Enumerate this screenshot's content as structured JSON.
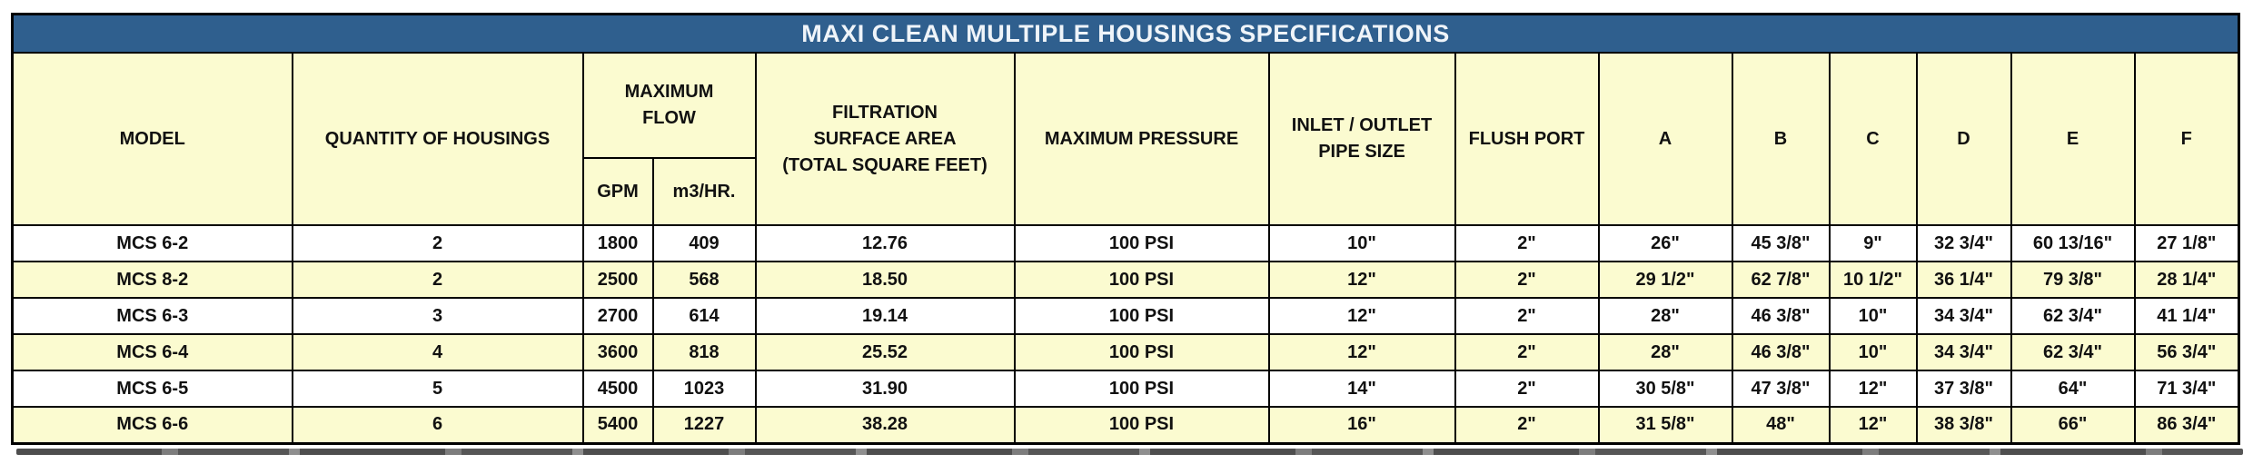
{
  "title": "MAXI CLEAN MULTIPLE HOUSINGS SPECIFICATIONS",
  "colors": {
    "title_bg": "#2F5F8E",
    "title_text": "#EFF4F9",
    "header_bg": "#FBFBD0",
    "row_bg": "#FFFFFF",
    "row_alt_bg": "#FBFBD0",
    "border": "#000000",
    "text": "#111111"
  },
  "header": {
    "model": "MODEL",
    "quantity": "QUANTITY OF HOUSINGS",
    "max_flow": "MAXIMUM\nFLOW",
    "gpm": "GPM",
    "m3hr": "m3/HR.",
    "filtration": "FILTRATION\nSURFACE AREA\n(TOTAL SQUARE FEET)",
    "max_pressure": "MAXIMUM PRESSURE",
    "inlet_outlet": "INLET / OUTLET\nPIPE SIZE",
    "flush_port": "FLUSH PORT",
    "dims": [
      "A",
      "B",
      "C",
      "D",
      "E",
      "F"
    ]
  },
  "rows": [
    {
      "cells": [
        "MCS 6-2",
        "2",
        "1800",
        "409",
        "12.76",
        "100 PSI",
        "10\"",
        "2\"",
        "26\"",
        "45 3/8\"",
        "9\"",
        "32 3/4\"",
        "60 13/16\"",
        "27 1/8\""
      ]
    },
    {
      "cells": [
        "MCS 8-2",
        "2",
        "2500",
        "568",
        "18.50",
        "100 PSI",
        "12\"",
        "2\"",
        "29 1/2\"",
        "62 7/8\"",
        "10 1/2\"",
        "36 1/4\"",
        "79 3/8\"",
        "28 1/4\""
      ]
    },
    {
      "cells": [
        "MCS 6-3",
        "3",
        "2700",
        "614",
        "19.14",
        "100 PSI",
        "12\"",
        "2\"",
        "28\"",
        "46 3/8\"",
        "10\"",
        "34 3/4\"",
        "62 3/4\"",
        "41 1/4\""
      ]
    },
    {
      "cells": [
        "MCS 6-4",
        "4",
        "3600",
        "818",
        "25.52",
        "100 PSI",
        "12\"",
        "2\"",
        "28\"",
        "46 3/8\"",
        "10\"",
        "34 3/4\"",
        "62 3/4\"",
        "56 3/4\""
      ]
    },
    {
      "cells": [
        "MCS 6-5",
        "5",
        "4500",
        "1023",
        "31.90",
        "100 PSI",
        "14\"",
        "2\"",
        "30 5/8\"",
        "47 3/8\"",
        "12\"",
        "37 3/8\"",
        "64\"",
        "71 3/4\""
      ]
    },
    {
      "cells": [
        "MCS 6-6",
        "6",
        "5400",
        "1227",
        "38.28",
        "100 PSI",
        "16\"",
        "2\"",
        "31 5/8\"",
        "48\"",
        "12\"",
        "38 3/8\"",
        "66\"",
        "86 3/4\""
      ]
    }
  ],
  "column_keys": [
    "model",
    "quantity",
    "gpm",
    "m3hr",
    "filtration",
    "pressure",
    "inlet",
    "flush",
    "a",
    "b",
    "c",
    "d",
    "e",
    "f"
  ]
}
